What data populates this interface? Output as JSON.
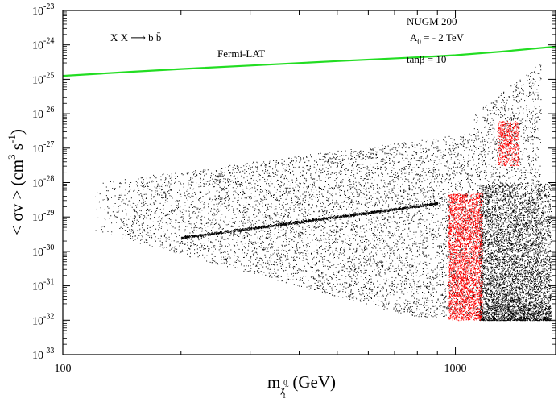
{
  "chart_data": {
    "type": "scatter",
    "x_axis": {
      "label_main": "m",
      "label_sub": "χ̃",
      "label_sub_sup": "0",
      "label_sub_sub": "1",
      "label_unit": " (GeV)",
      "scale": "log",
      "range": [
        100,
        1800
      ],
      "major_ticks": [
        100,
        1000
      ],
      "major_tick_labels": [
        "100",
        "1000"
      ]
    },
    "y_axis": {
      "label": "< σv > (cm³ s⁻¹)",
      "label_open": "< σv > (cm",
      "label_exp1": "3",
      "label_mid": " s",
      "label_exp2": "-1",
      "label_close": ")",
      "scale": "log",
      "range_exponent": [
        -33,
        -23
      ],
      "tick_exponents": [
        -33,
        -32,
        -31,
        -30,
        -29,
        -28,
        -27,
        -26,
        -25,
        -24,
        -23
      ],
      "tick_exp_labels": [
        "-33",
        "-32",
        "-31",
        "-30",
        "-29",
        "-28",
        "-27",
        "-26",
        "-25",
        "-24",
        "-23"
      ],
      "tick_base": "10"
    },
    "annotations": {
      "process": "X X ⟶ b b̄",
      "model": "NUGM 200",
      "a0_label": "A",
      "a0_sub": "0",
      "a0_value": " = - 2 TeV",
      "tanb": "tanβ = 10",
      "fermi_label": "Fermi-LAT"
    },
    "series": [
      {
        "name": "Fermi-LAT",
        "kind": "line",
        "color": "#22dd22",
        "x": [
          100,
          150,
          200,
          300,
          500,
          800,
          1000,
          1300,
          1800
        ],
        "log10_y": [
          -24.9,
          -24.78,
          -24.7,
          -24.6,
          -24.47,
          -24.36,
          -24.3,
          -24.2,
          -24.05
        ]
      },
      {
        "name": "all points",
        "kind": "scatter",
        "color": "#000000"
      },
      {
        "name": "selected points",
        "kind": "scatter",
        "color": "#ff0000"
      }
    ]
  }
}
